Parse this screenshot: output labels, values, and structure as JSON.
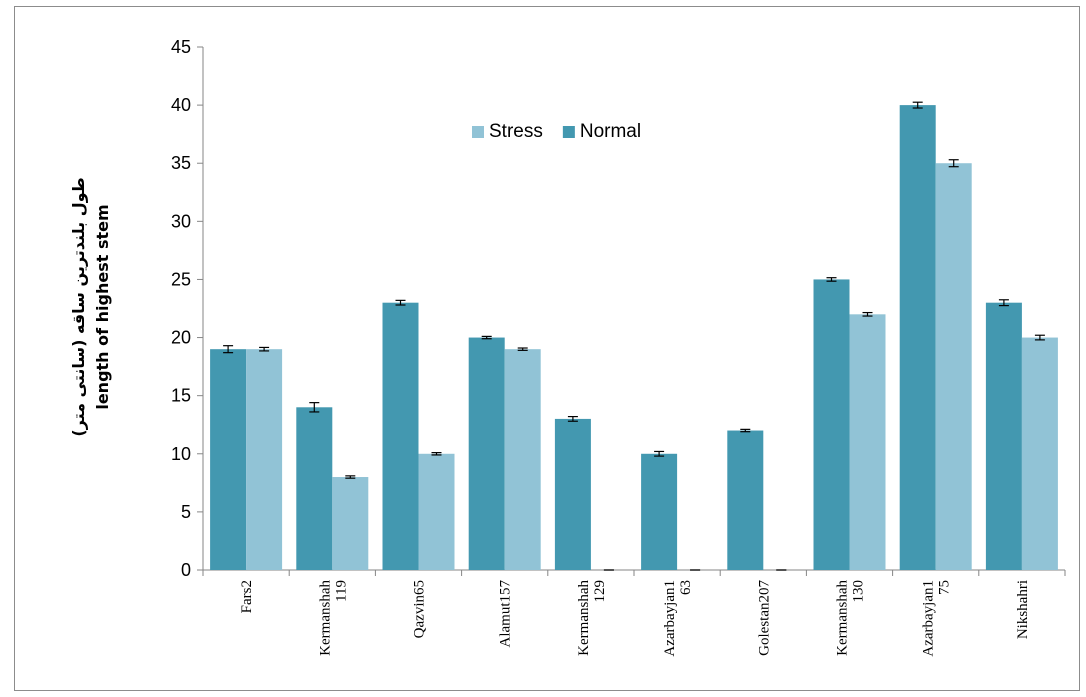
{
  "chart_data": {
    "type": "bar",
    "categories": [
      [
        "Fars2"
      ],
      [
        "Kermanshah",
        "119"
      ],
      [
        "Qazvin65"
      ],
      [
        "Alamut157"
      ],
      [
        "Kermanshah",
        "129"
      ],
      [
        "Azarbayjan1",
        "63"
      ],
      [
        "Golestan207"
      ],
      [
        "Kermanshah",
        "130"
      ],
      [
        "Azarbayjan1",
        "75"
      ],
      [
        "Nikshahri"
      ]
    ],
    "series": [
      {
        "name": "Normal",
        "color": "#4398b0",
        "values": [
          19,
          14,
          23,
          20,
          13,
          10,
          12,
          25,
          40,
          23
        ],
        "errors": [
          0.3,
          0.4,
          0.2,
          0.1,
          0.2,
          0.2,
          0.1,
          0.15,
          0.25,
          0.25
        ]
      },
      {
        "name": "Stress",
        "color": "#91c3d6",
        "values": [
          19,
          8,
          10,
          19,
          0,
          0,
          0,
          22,
          35,
          20
        ],
        "errors": [
          0.15,
          0.1,
          0.1,
          0.1,
          0.0,
          0.0,
          0.0,
          0.15,
          0.3,
          0.2
        ]
      }
    ],
    "legend_order": [
      "Stress",
      "Normal"
    ],
    "legend_position": "top-center",
    "ylabel_lines": [
      "طول بلندترین ساقه (سانتی متر)",
      "length of highest stem"
    ],
    "xlabel": "",
    "ylim": [
      0,
      45
    ],
    "yticks": [
      0,
      5,
      10,
      15,
      20,
      25,
      30,
      35,
      40,
      45
    ],
    "grid": false
  }
}
